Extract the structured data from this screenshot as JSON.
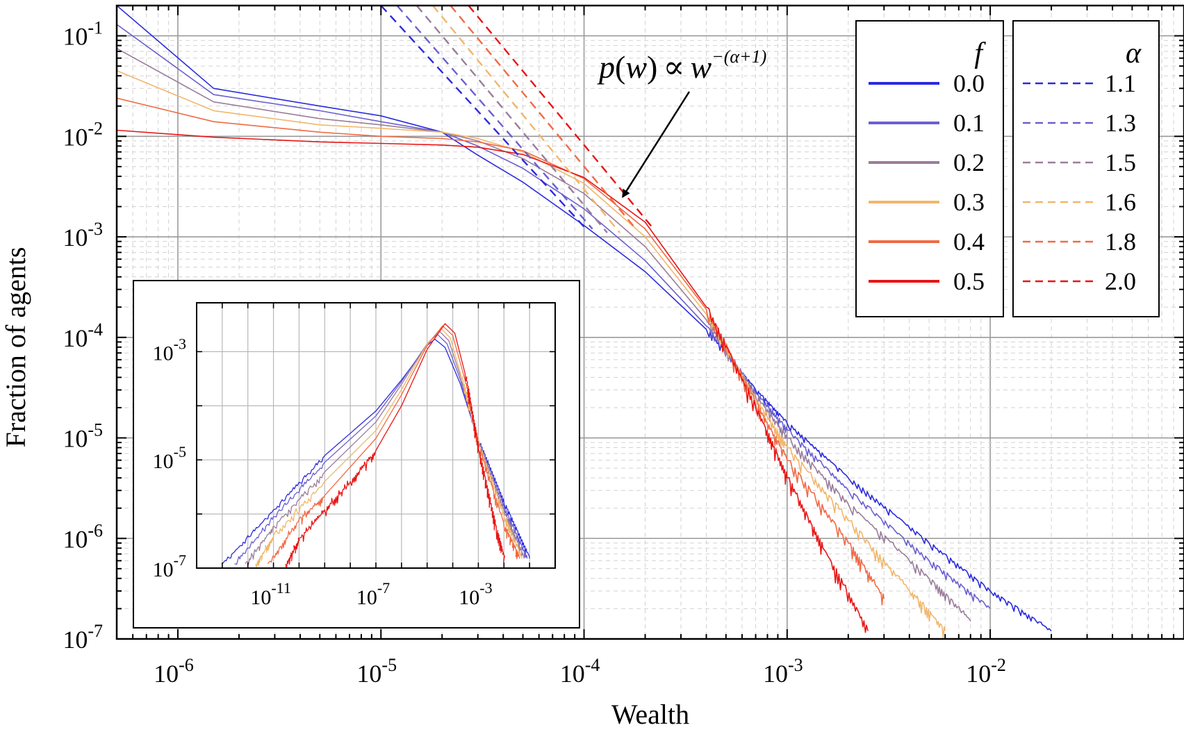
{
  "chart_data": [
    {
      "type": "line",
      "id": "main",
      "xlabel": "Wealth",
      "ylabel": "Fraction of agents",
      "xscale": "log",
      "yscale": "log",
      "xlim": [
        5e-07,
        0.09
      ],
      "ylim": [
        1e-07,
        0.2
      ],
      "x_ticks": [
        {
          "mant": "10",
          "exp": "-6",
          "value": 1e-06
        },
        {
          "mant": "10",
          "exp": "-5",
          "value": 1e-05
        },
        {
          "mant": "10",
          "exp": "-4",
          "value": 0.0001
        },
        {
          "mant": "10",
          "exp": "-3",
          "value": 0.001
        },
        {
          "mant": "10",
          "exp": "-2",
          "value": 0.01
        }
      ],
      "y_ticks": [
        {
          "mant": "10",
          "exp": "-1",
          "value": 0.1
        },
        {
          "mant": "10",
          "exp": "-2",
          "value": 0.01
        },
        {
          "mant": "10",
          "exp": "-3",
          "value": 0.001
        },
        {
          "mant": "10",
          "exp": "-4",
          "value": 0.0001
        },
        {
          "mant": "10",
          "exp": "-5",
          "value": 1e-05
        },
        {
          "mant": "10",
          "exp": "-6",
          "value": 1e-06
        },
        {
          "mant": "10",
          "exp": "-7",
          "value": 1e-07
        }
      ],
      "grid": true,
      "series": [
        {
          "name": "0.0",
          "color": "#2b2bdd",
          "points": [
            [
              5e-07,
              0.2
            ],
            [
              1.5e-06,
              0.03
            ],
            [
              5e-06,
              0.02
            ],
            [
              1e-05,
              0.016
            ],
            [
              2e-05,
              0.011
            ],
            [
              3e-05,
              0.0065
            ],
            [
              5e-05,
              0.0035
            ],
            [
              0.0001,
              0.0013
            ],
            [
              0.0002,
              0.00045
            ],
            [
              0.0004,
              0.00012
            ],
            [
              0.0007,
              3e-05
            ],
            [
              0.001,
              1.4e-05
            ],
            [
              0.002,
              4e-06
            ],
            [
              0.005,
              9e-07
            ],
            [
              0.01,
              3e-07
            ],
            [
              0.02,
              1.2e-07
            ]
          ]
        },
        {
          "name": "0.1",
          "color": "#6b5fd0",
          "points": [
            [
              5e-07,
              0.13
            ],
            [
              1.5e-06,
              0.026
            ],
            [
              5e-06,
              0.018
            ],
            [
              1e-05,
              0.014
            ],
            [
              2e-05,
              0.011
            ],
            [
              3e-05,
              0.008
            ],
            [
              5e-05,
              0.0048
            ],
            [
              0.0001,
              0.0019
            ],
            [
              0.0002,
              0.00058
            ],
            [
              0.0004,
              0.00013
            ],
            [
              0.0007,
              2.8e-05
            ],
            [
              0.001,
              1.2e-05
            ],
            [
              0.002,
              3e-06
            ],
            [
              0.005,
              6e-07
            ],
            [
              0.01,
              2e-07
            ]
          ]
        },
        {
          "name": "0.2",
          "color": "#9a7d9a",
          "points": [
            [
              5e-07,
              0.075
            ],
            [
              1.5e-06,
              0.022
            ],
            [
              5e-06,
              0.015
            ],
            [
              1e-05,
              0.013
            ],
            [
              2e-05,
              0.011
            ],
            [
              3e-05,
              0.009
            ],
            [
              5e-05,
              0.006
            ],
            [
              0.0001,
              0.0027
            ],
            [
              0.0002,
              0.0008
            ],
            [
              0.0004,
              0.00015
            ],
            [
              0.0007,
              2.6e-05
            ],
            [
              0.001,
              1e-05
            ],
            [
              0.002,
              2.2e-06
            ],
            [
              0.005,
              4e-07
            ],
            [
              0.008,
              1.5e-07
            ]
          ]
        },
        {
          "name": "0.3",
          "color": "#f2b66a",
          "points": [
            [
              5e-07,
              0.045
            ],
            [
              1.5e-06,
              0.018
            ],
            [
              5e-06,
              0.013
            ],
            [
              1e-05,
              0.012
            ],
            [
              2e-05,
              0.011
            ],
            [
              3e-05,
              0.0095
            ],
            [
              5e-05,
              0.007
            ],
            [
              0.0001,
              0.0034
            ],
            [
              0.0002,
              0.001
            ],
            [
              0.0004,
              0.00017
            ],
            [
              0.0007,
              2.4e-05
            ],
            [
              0.001,
              8e-06
            ],
            [
              0.002,
              1.5e-06
            ],
            [
              0.004,
              3e-07
            ],
            [
              0.006,
              1.2e-07
            ]
          ]
        },
        {
          "name": "0.4",
          "color": "#f06a45",
          "points": [
            [
              5e-07,
              0.024
            ],
            [
              1.5e-06,
              0.014
            ],
            [
              5e-06,
              0.011
            ],
            [
              1e-05,
              0.01
            ],
            [
              2e-05,
              0.0095
            ],
            [
              3e-05,
              0.0088
            ],
            [
              5e-05,
              0.0072
            ],
            [
              0.0001,
              0.0038
            ],
            [
              0.0002,
              0.0012
            ],
            [
              0.0004,
              0.00019
            ],
            [
              0.0007,
              2.2e-05
            ],
            [
              0.001,
              6e-06
            ],
            [
              0.002,
              9e-07
            ],
            [
              0.003,
              2.5e-07
            ]
          ]
        },
        {
          "name": "0.5",
          "color": "#e81515",
          "points": [
            [
              5e-07,
              0.0115
            ],
            [
              1.5e-06,
              0.0098
            ],
            [
              5e-06,
              0.0088
            ],
            [
              1e-05,
              0.0085
            ],
            [
              2e-05,
              0.0082
            ],
            [
              3e-05,
              0.0078
            ],
            [
              5e-05,
              0.0066
            ],
            [
              0.0001,
              0.0039
            ],
            [
              0.0002,
              0.0014
            ],
            [
              0.0004,
              0.0002
            ],
            [
              0.0007,
              2e-05
            ],
            [
              0.001,
              4e-06
            ],
            [
              0.0015,
              8e-07
            ],
            [
              0.0025,
              1.2e-07
            ]
          ]
        }
      ],
      "fits": [
        {
          "name": "1.1",
          "color": "#2b2bdd",
          "points": [
            [
              1e-05,
              0.2
            ],
            [
              0.0001,
              0.00126
            ]
          ]
        },
        {
          "name": "1.3",
          "color": "#6b5fd0",
          "points": [
            [
              1.2e-05,
              0.2
            ],
            [
              0.00011,
              0.0012
            ]
          ]
        },
        {
          "name": "1.5",
          "color": "#9a7d9a",
          "points": [
            [
              1.5e-05,
              0.2
            ],
            [
              0.00013,
              0.0011
            ]
          ]
        },
        {
          "name": "1.6",
          "color": "#f2b66a",
          "points": [
            [
              1.8e-05,
              0.2
            ],
            [
              0.00015,
              0.0011
            ]
          ]
        },
        {
          "name": "1.8",
          "color": "#f06a45",
          "points": [
            [
              2.2e-05,
              0.2
            ],
            [
              0.00018,
              0.0012
            ]
          ]
        },
        {
          "name": "2.0",
          "color": "#e81515",
          "points": [
            [
              2.7e-05,
              0.2
            ],
            [
              0.00022,
              0.0012
            ]
          ]
        }
      ],
      "legend_f": {
        "title": "f",
        "entries": [
          "0.0",
          "0.1",
          "0.2",
          "0.3",
          "0.4",
          "0.5"
        ]
      },
      "legend_alpha": {
        "title": "α",
        "entries": [
          "1.1",
          "1.3",
          "1.5",
          "1.6",
          "1.8",
          "2.0"
        ]
      },
      "annotation": {
        "p": "p",
        "lparen": "(",
        "w": "w",
        "rparen": ")",
        "propto": "∝",
        "w2": "w",
        "exponent": "−(α+1)",
        "arrow_target": [
          0.000155,
          0.0025
        ]
      }
    },
    {
      "type": "line",
      "id": "inset",
      "xscale": "log",
      "yscale": "log",
      "xlim": [
        1e-14,
        1
      ],
      "ylim": [
        1e-07,
        0.008
      ],
      "x_ticks": [
        {
          "mant": "10",
          "exp": "-11",
          "value": 1e-11
        },
        {
          "mant": "10",
          "exp": "-7",
          "value": 1e-07
        },
        {
          "mant": "10",
          "exp": "-3",
          "value": 0.001
        }
      ],
      "y_ticks": [
        {
          "mant": "10",
          "exp": "-3",
          "value": 0.001
        },
        {
          "mant": "10",
          "exp": "-5",
          "value": 1e-05
        },
        {
          "mant": "10",
          "exp": "-7",
          "value": 1e-07
        }
      ],
      "grid": true,
      "series": [
        {
          "name": "0.0",
          "color": "#2b2bdd",
          "points": [
            [
              1e-13,
              1.2e-07
            ],
            [
              1e-11,
              1.2e-06
            ],
            [
              1e-09,
              1.2e-05
            ],
            [
              1e-07,
              8e-05
            ],
            [
              1e-06,
              0.0003
            ],
            [
              1e-05,
              0.0013
            ],
            [
              2e-05,
              0.0017
            ],
            [
              5e-05,
              0.0012
            ],
            [
              0.0002,
              0.00025
            ],
            [
              0.001,
              2.3e-05
            ],
            [
              0.01,
              1.6e-06
            ],
            [
              0.1,
              1.5e-07
            ]
          ]
        },
        {
          "name": "0.1",
          "color": "#6b5fd0",
          "points": [
            [
              3e-13,
              1.2e-07
            ],
            [
              1e-11,
              9e-07
            ],
            [
              1e-09,
              9e-06
            ],
            [
              1e-07,
              6.5e-05
            ],
            [
              1e-06,
              0.00028
            ],
            [
              1e-05,
              0.0014
            ],
            [
              2.5e-05,
              0.0021
            ],
            [
              6e-05,
              0.0014
            ],
            [
              0.0002,
              0.0003
            ],
            [
              0.001,
              2.2e-05
            ],
            [
              0.01,
              1.3e-06
            ],
            [
              0.08,
              1.5e-07
            ]
          ]
        },
        {
          "name": "0.2",
          "color": "#9a7d9a",
          "points": [
            [
              8e-13,
              1.2e-07
            ],
            [
              1e-11,
              6e-07
            ],
            [
              1e-09,
              6e-06
            ],
            [
              1e-07,
              5e-05
            ],
            [
              1e-06,
              0.00025
            ],
            [
              1e-05,
              0.0014
            ],
            [
              3e-05,
              0.0024
            ],
            [
              7e-05,
              0.0016
            ],
            [
              0.0002,
              0.00035
            ],
            [
              0.001,
              2.1e-05
            ],
            [
              0.01,
              1.1e-06
            ],
            [
              0.06,
              1.5e-07
            ]
          ]
        },
        {
          "name": "0.3",
          "color": "#f2b66a",
          "points": [
            [
              2e-12,
              1.2e-07
            ],
            [
              1e-11,
              4e-07
            ],
            [
              1e-09,
              4e-06
            ],
            [
              1e-07,
              3.5e-05
            ],
            [
              1e-06,
              0.0002
            ],
            [
              1e-05,
              0.0014
            ],
            [
              3.5e-05,
              0.0027
            ],
            [
              8e-05,
              0.0018
            ],
            [
              0.0002,
              0.0004
            ],
            [
              0.001,
              2e-05
            ],
            [
              0.01,
              9e-07
            ],
            [
              0.05,
              1.5e-07
            ]
          ]
        },
        {
          "name": "0.4",
          "color": "#f06a45",
          "points": [
            [
              6e-12,
              1.2e-07
            ],
            [
              1e-10,
              8e-07
            ],
            [
              1e-09,
              2.2e-06
            ],
            [
              1e-07,
              2.5e-05
            ],
            [
              1e-06,
              0.00016
            ],
            [
              1e-05,
              0.0013
            ],
            [
              4e-05,
              0.003
            ],
            [
              0.0001,
              0.002
            ],
            [
              0.0003,
              0.0003
            ],
            [
              0.001,
              1.8e-05
            ],
            [
              0.01,
              6e-07
            ],
            [
              0.04,
              1.5e-07
            ]
          ]
        },
        {
          "name": "0.5",
          "color": "#e81515",
          "points": [
            [
              3e-11,
              1.2e-07
            ],
            [
              1e-10,
              3.5e-07
            ],
            [
              1e-09,
              1.2e-06
            ],
            [
              1e-08,
              4e-06
            ],
            [
              1e-07,
              1.5e-05
            ],
            [
              1e-06,
              0.0001
            ],
            [
              1e-05,
              0.0011
            ],
            [
              5e-05,
              0.0033
            ],
            [
              0.00012,
              0.0022
            ],
            [
              0.0003,
              0.0004
            ],
            [
              0.001,
              1.5e-05
            ],
            [
              0.005,
              5e-07
            ],
            [
              0.01,
              1.5e-07
            ]
          ]
        }
      ]
    }
  ]
}
